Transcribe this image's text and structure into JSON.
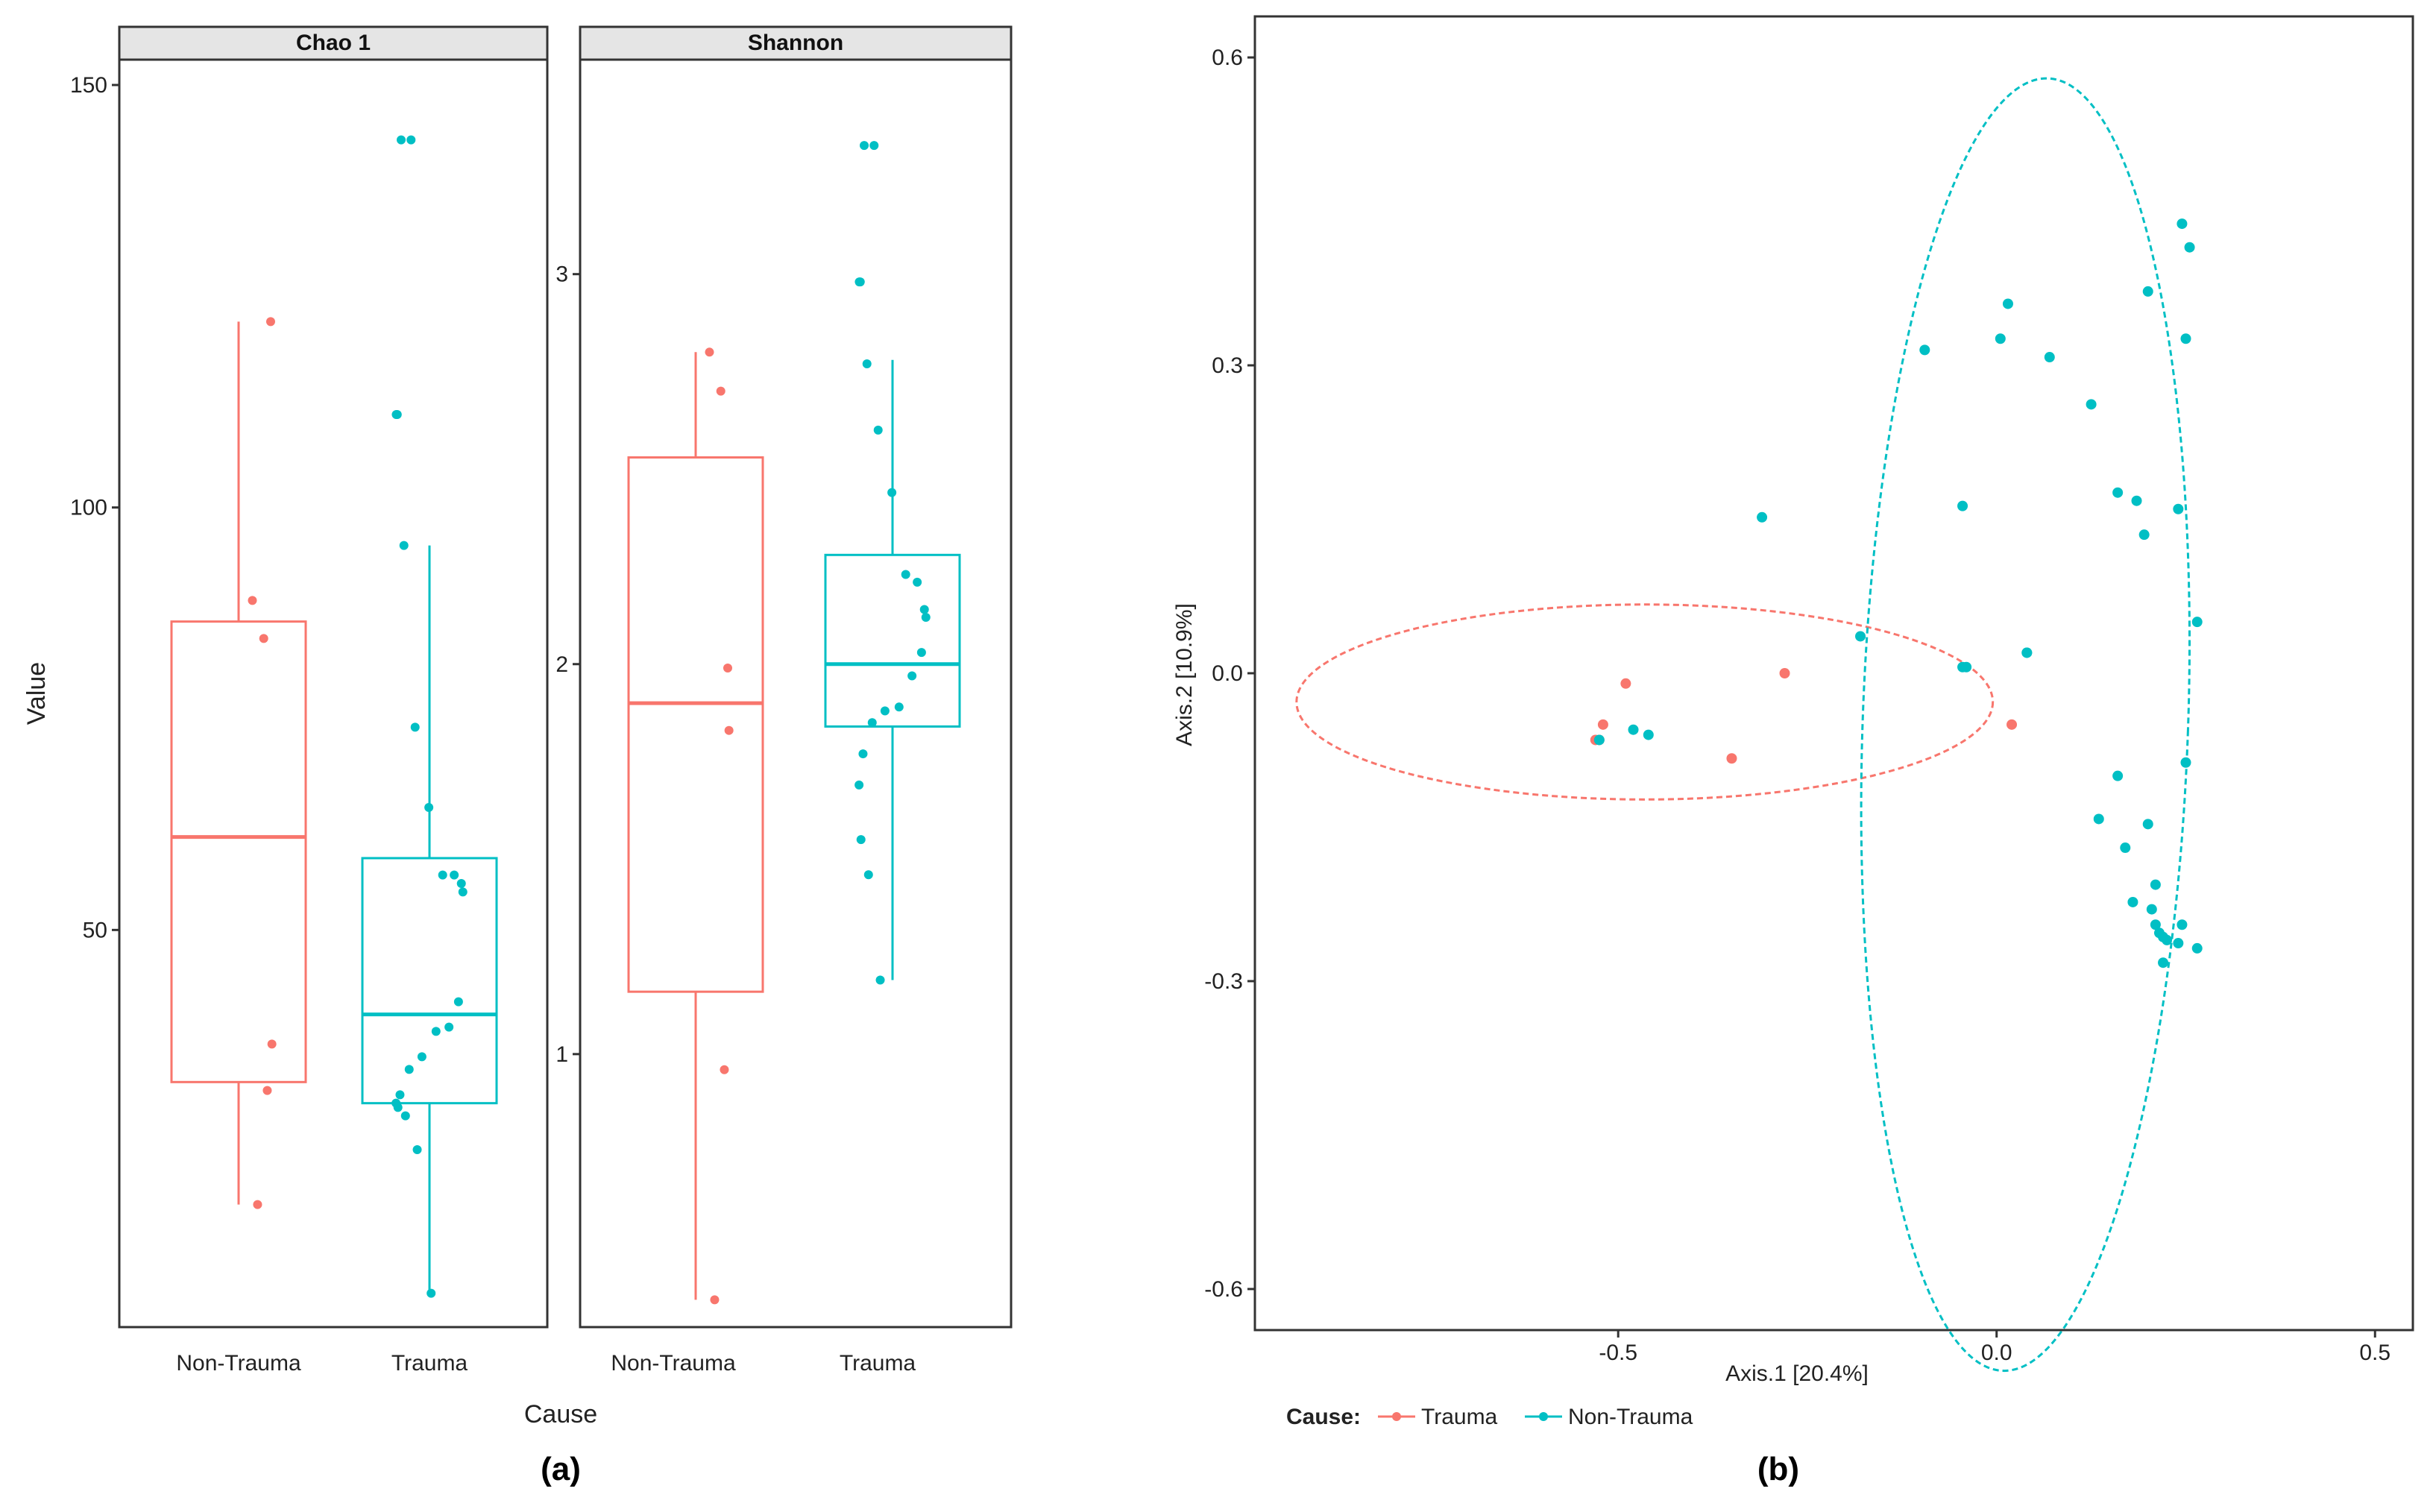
{
  "figure": {
    "panel_a_label": "(a)",
    "panel_b_label": "(b)"
  },
  "colors": {
    "non_trauma_box": "#F8766D",
    "trauma_box": "#00BFC4",
    "trauma_scatter": "#F8766D",
    "non_trauma_scatter": "#00BFC4",
    "frame": "#333333",
    "strip_bg": "#E5E5E5"
  },
  "chart_data": [
    {
      "type": "box",
      "title": "Chao 1",
      "xlabel": "Cause",
      "ylabel": "Value",
      "ylim": [
        3,
        153
      ],
      "yticks": [
        50,
        100,
        150
      ],
      "categories": [
        "Non-Trauma",
        "Trauma"
      ],
      "boxes": [
        {
          "category": "Non-Trauma",
          "q1": 32,
          "median": 61,
          "q3": 86.5,
          "whisker_low": 17.5,
          "whisker_high": 122,
          "points": [
            89,
            84.5,
            122,
            36.5,
            31,
            17.5
          ]
        },
        {
          "category": "Trauma",
          "q1": 29.5,
          "median": 40,
          "q3": 58.5,
          "whisker_low": 7,
          "whisker_high": 95.5,
          "points": [
            143.5,
            143.5,
            111,
            111,
            95.5,
            74,
            64.5,
            56.5,
            56.5,
            55.5,
            54.5,
            41.5,
            38.5,
            38,
            35,
            33.5,
            30.5,
            29.5,
            29,
            28,
            24,
            7
          ]
        }
      ]
    },
    {
      "type": "box",
      "title": "Shannon",
      "xlabel": "Cause",
      "ylabel": "Value",
      "ylim": [
        0.3,
        3.55
      ],
      "yticks": [
        1,
        2,
        3
      ],
      "categories": [
        "Non-Trauma",
        "Trauma"
      ],
      "boxes": [
        {
          "category": "Non-Trauma",
          "q1": 1.16,
          "median": 1.9,
          "q3": 2.53,
          "whisker_low": 0.37,
          "whisker_high": 2.8,
          "points": [
            2.8,
            2.7,
            1.99,
            1.83,
            0.96,
            0.37
          ]
        },
        {
          "category": "Trauma",
          "q1": 1.84,
          "median": 2.0,
          "q3": 2.28,
          "whisker_low": 1.19,
          "whisker_high": 2.78,
          "points": [
            3.33,
            3.33,
            2.98,
            2.98,
            2.77,
            2.6,
            2.44,
            2.23,
            2.21,
            2.14,
            2.12,
            2.03,
            1.97,
            1.89,
            1.88,
            1.85,
            1.77,
            1.69,
            1.55,
            1.46,
            1.19
          ]
        }
      ]
    },
    {
      "type": "scatter",
      "xlabel": "Axis.1 [20.4%]",
      "ylabel": "Axis.2 [10.9%]",
      "xlim": [
        -0.98,
        0.55
      ],
      "ylim": [
        -0.64,
        0.64
      ],
      "xticks": [
        "-0.5",
        "0.0",
        "0.5"
      ],
      "yticks": [
        "0.6",
        "0.3",
        "0.0",
        "-0.3",
        "-0.6"
      ],
      "legend": {
        "title": "Cause:",
        "position": "bottom-left",
        "entries": [
          "Trauma",
          "Non-Trauma"
        ]
      },
      "series": [
        {
          "name": "Trauma",
          "x": [
            -0.49,
            -0.52,
            -0.525,
            -0.53,
            -0.35,
            -0.28,
            0.02
          ],
          "y": [
            -0.01,
            -0.05,
            -0.065,
            -0.065,
            -0.083,
            0.0,
            -0.05
          ]
        },
        {
          "name": "Non-Trauma",
          "x": [
            -0.525,
            -0.48,
            -0.46,
            -0.31,
            -0.18,
            -0.095,
            -0.045,
            -0.04,
            0.005,
            0.015,
            0.04,
            0.07,
            0.125,
            0.16,
            0.185,
            0.195,
            0.2,
            0.24,
            0.25,
            0.245,
            0.255,
            0.265,
            -0.045,
            0.04,
            0.16,
            0.135,
            0.2,
            0.17,
            0.21,
            0.18,
            0.205,
            0.21,
            0.215,
            0.22,
            0.225,
            0.245,
            0.24,
            0.265,
            0.22,
            0.25
          ],
          "y": [
            -0.065,
            -0.055,
            -0.06,
            0.152,
            0.036,
            0.315,
            0.163,
            0.006,
            0.326,
            0.36,
            0.02,
            0.308,
            0.262,
            0.176,
            0.168,
            0.135,
            0.372,
            0.16,
            0.326,
            0.438,
            0.415,
            0.05,
            0.006,
            0.02,
            -0.1,
            -0.142,
            -0.147,
            -0.17,
            -0.206,
            -0.223,
            -0.23,
            -0.245,
            -0.253,
            -0.257,
            -0.26,
            -0.245,
            -0.263,
            -0.268,
            -0.282,
            -0.087
          ]
        }
      ],
      "ellipses": [
        {
          "group": "Trauma",
          "center": [
            -0.465,
            -0.028
          ],
          "semi_major": 0.46,
          "semi_minor": 0.095,
          "angle_deg": 0
        },
        {
          "group": "Non-Trauma",
          "center": [
            0.038,
            -0.05
          ],
          "semi_major": 0.63,
          "semi_minor": 0.215,
          "angle_deg": 88
        }
      ]
    }
  ]
}
